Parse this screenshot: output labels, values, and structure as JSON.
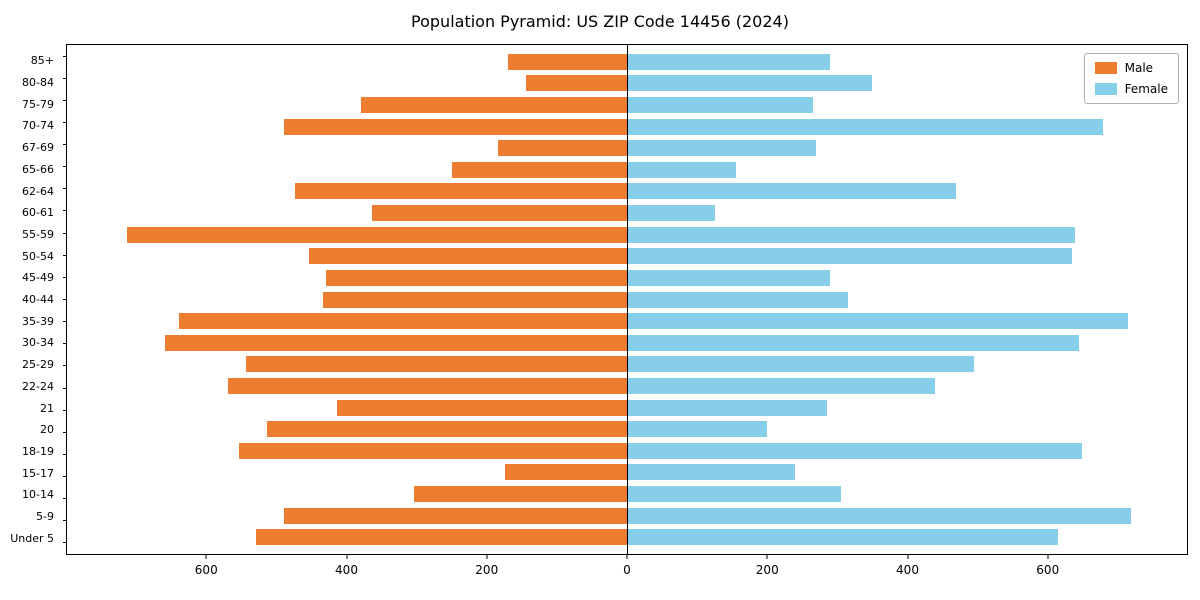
{
  "title": "Population Pyramid: US ZIP Code 14456 (2024)",
  "legend": {
    "male_label": "Male",
    "female_label": "Female"
  },
  "colors": {
    "male": "#ed7d31",
    "female": "#87ceeb"
  },
  "chart_data": {
    "type": "bar",
    "orientation": "horizontal-pyramid",
    "title": "Population Pyramid: US ZIP Code 14456 (2024)",
    "categories_top_to_bottom": [
      "85+",
      "80-84",
      "75-79",
      "70-74",
      "67-69",
      "65-66",
      "62-64",
      "60-61",
      "55-59",
      "50-54",
      "45-49",
      "40-44",
      "35-39",
      "30-34",
      "25-29",
      "22-24",
      "21",
      "20",
      "18-19",
      "15-17",
      "10-14",
      "5-9",
      "Under 5"
    ],
    "series": [
      {
        "name": "Male",
        "side": "left",
        "values": [
          170,
          145,
          380,
          490,
          185,
          250,
          475,
          365,
          715,
          455,
          430,
          435,
          640,
          660,
          545,
          570,
          415,
          515,
          555,
          175,
          305,
          490,
          530
        ]
      },
      {
        "name": "Female",
        "side": "right",
        "values": [
          290,
          350,
          265,
          680,
          270,
          155,
          470,
          125,
          640,
          635,
          290,
          315,
          715,
          645,
          495,
          440,
          285,
          200,
          650,
          240,
          305,
          720,
          615
        ]
      }
    ],
    "xlim": [
      -800,
      800
    ],
    "x_ticks": [
      -600,
      -400,
      -200,
      0,
      200,
      400,
      600
    ],
    "x_tick_labels": [
      "600",
      "400",
      "200",
      "0",
      "200",
      "400",
      "600"
    ],
    "ylabel": "",
    "xlabel": "",
    "grid": false,
    "legend_position": "upper right"
  }
}
